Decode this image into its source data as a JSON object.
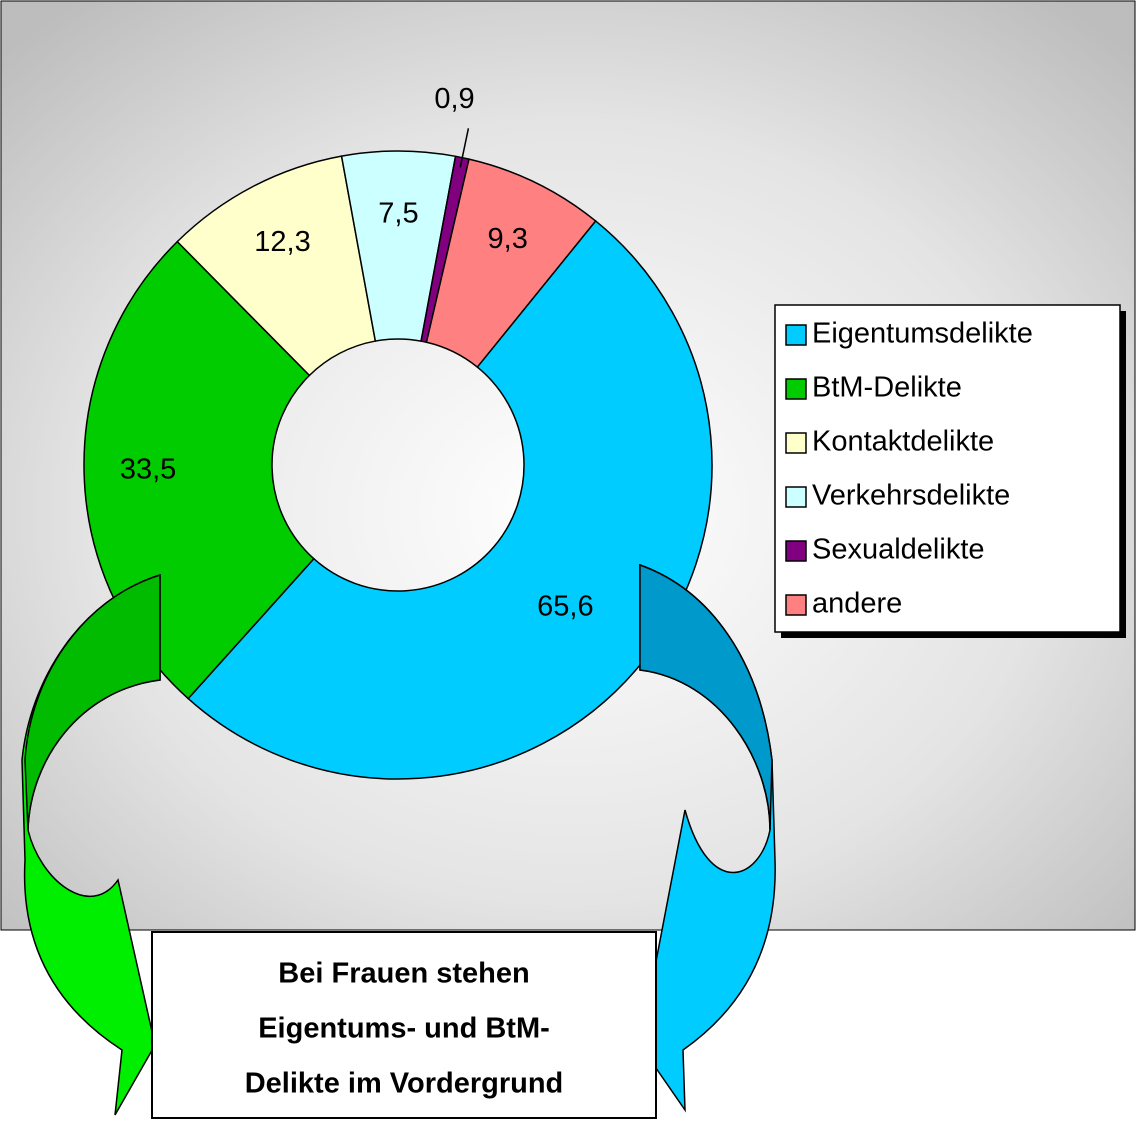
{
  "chart_data": {
    "type": "doughnut",
    "series": [
      {
        "name": "Eigentumsdelikte",
        "color": "#00ccff",
        "values": [
          65.6
        ],
        "value_labels": [
          "65,6"
        ]
      },
      {
        "name": "BtM-Delikte",
        "color": "#00cc00",
        "values": [
          33.5
        ],
        "value_labels": [
          "33,5"
        ]
      },
      {
        "name": "Kontaktdelikte",
        "color": "#ffffcc",
        "values": [
          12.3
        ],
        "value_labels": [
          "12,3"
        ]
      },
      {
        "name": "Verkehrsdelikte",
        "color": "#ccffff",
        "values": [
          7.5
        ],
        "value_labels": [
          "7,5"
        ]
      },
      {
        "name": "Sexualdelikte",
        "color": "#800080",
        "values": [
          0.9
        ],
        "value_labels": [
          "0,9"
        ]
      },
      {
        "name": "andere",
        "color": "#ff8080",
        "values": [
          9.3
        ],
        "value_labels": [
          "9,3"
        ]
      }
    ],
    "legend": "right",
    "annotation": [
      "Bei Frauen stehen",
      "Eigentums- und BtM-",
      "Delikte im Vordergrund"
    ]
  }
}
